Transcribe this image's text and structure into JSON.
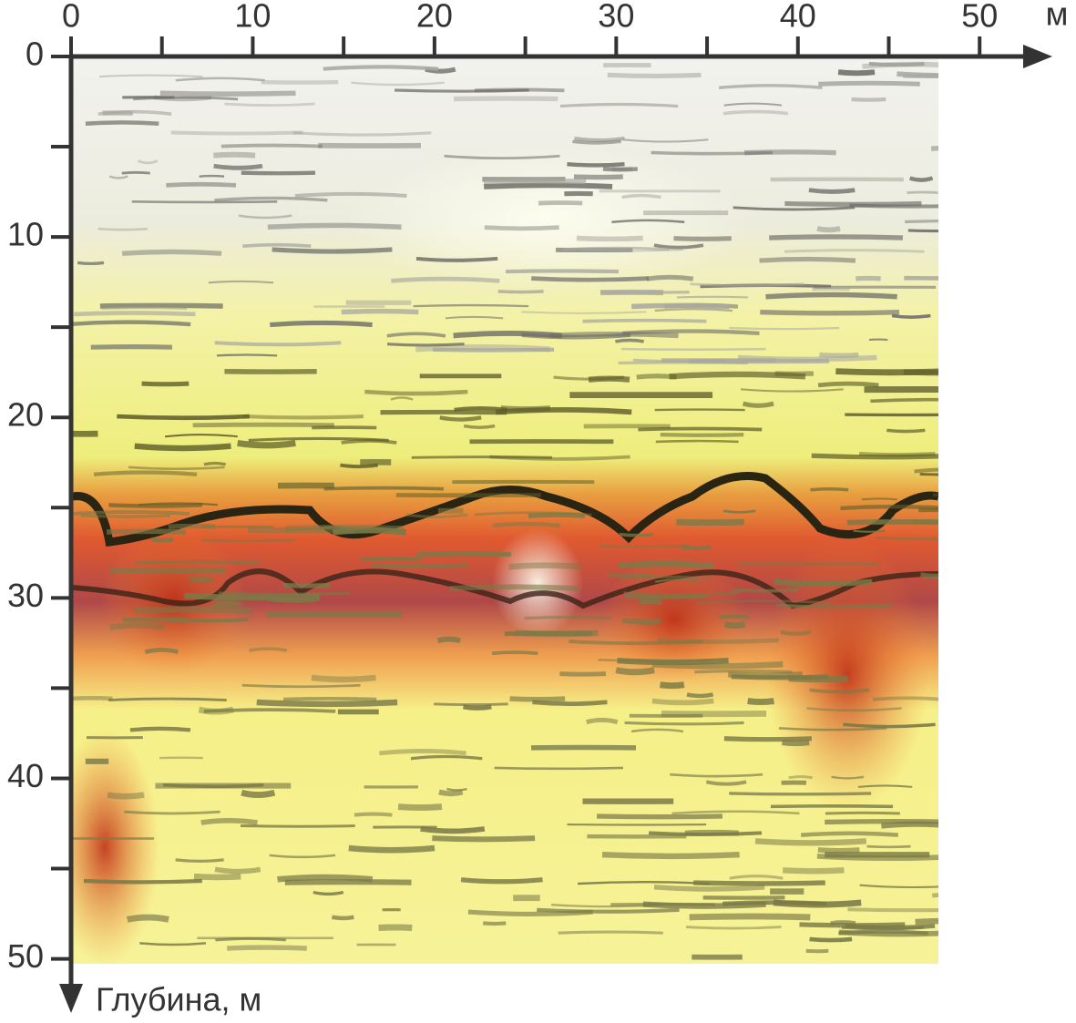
{
  "chart_data": {
    "type": "image",
    "x_label": "м",
    "y_label": "Глубина, м",
    "xlim": [
      0,
      54
    ],
    "ylim": [
      0,
      53
    ],
    "xticks": [
      0,
      10,
      20,
      30,
      40,
      50
    ],
    "xminor": [
      5,
      15,
      25,
      35,
      45
    ],
    "yticks": [
      0,
      10,
      20,
      30,
      40,
      50
    ],
    "yminor": [
      5,
      15,
      25,
      35,
      45
    ],
    "y_inverted": true,
    "axis_color": "#333333"
  }
}
